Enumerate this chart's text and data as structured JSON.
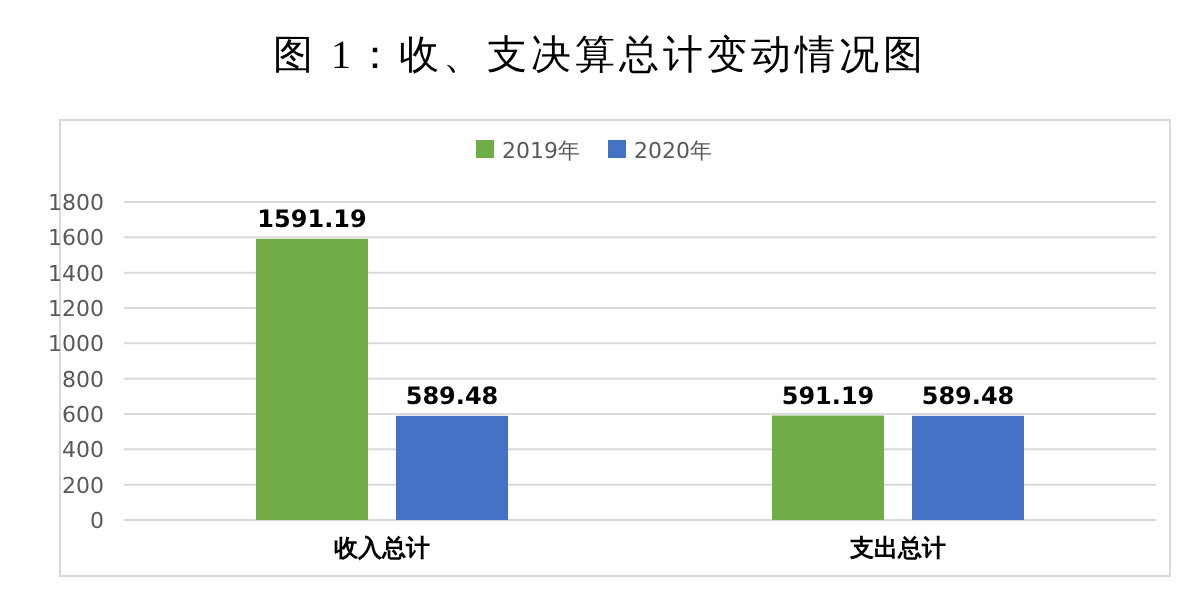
{
  "chart_data": {
    "type": "bar",
    "title": "图 1：收、支决算总计变动情况图",
    "categories": [
      "收入总计",
      "支出总计"
    ],
    "series": [
      {
        "name": "2019年",
        "color": "#70ad47",
        "values": [
          1591.19,
          591.19
        ]
      },
      {
        "name": "2020年",
        "color": "#4472c4",
        "values": [
          589.48,
          589.48
        ]
      }
    ],
    "ylim": [
      0,
      1800
    ],
    "yticks": [
      0,
      200,
      400,
      600,
      800,
      1000,
      1200,
      1400,
      1600,
      1800
    ],
    "grid": "y",
    "legend": "top",
    "data_labels": true
  }
}
